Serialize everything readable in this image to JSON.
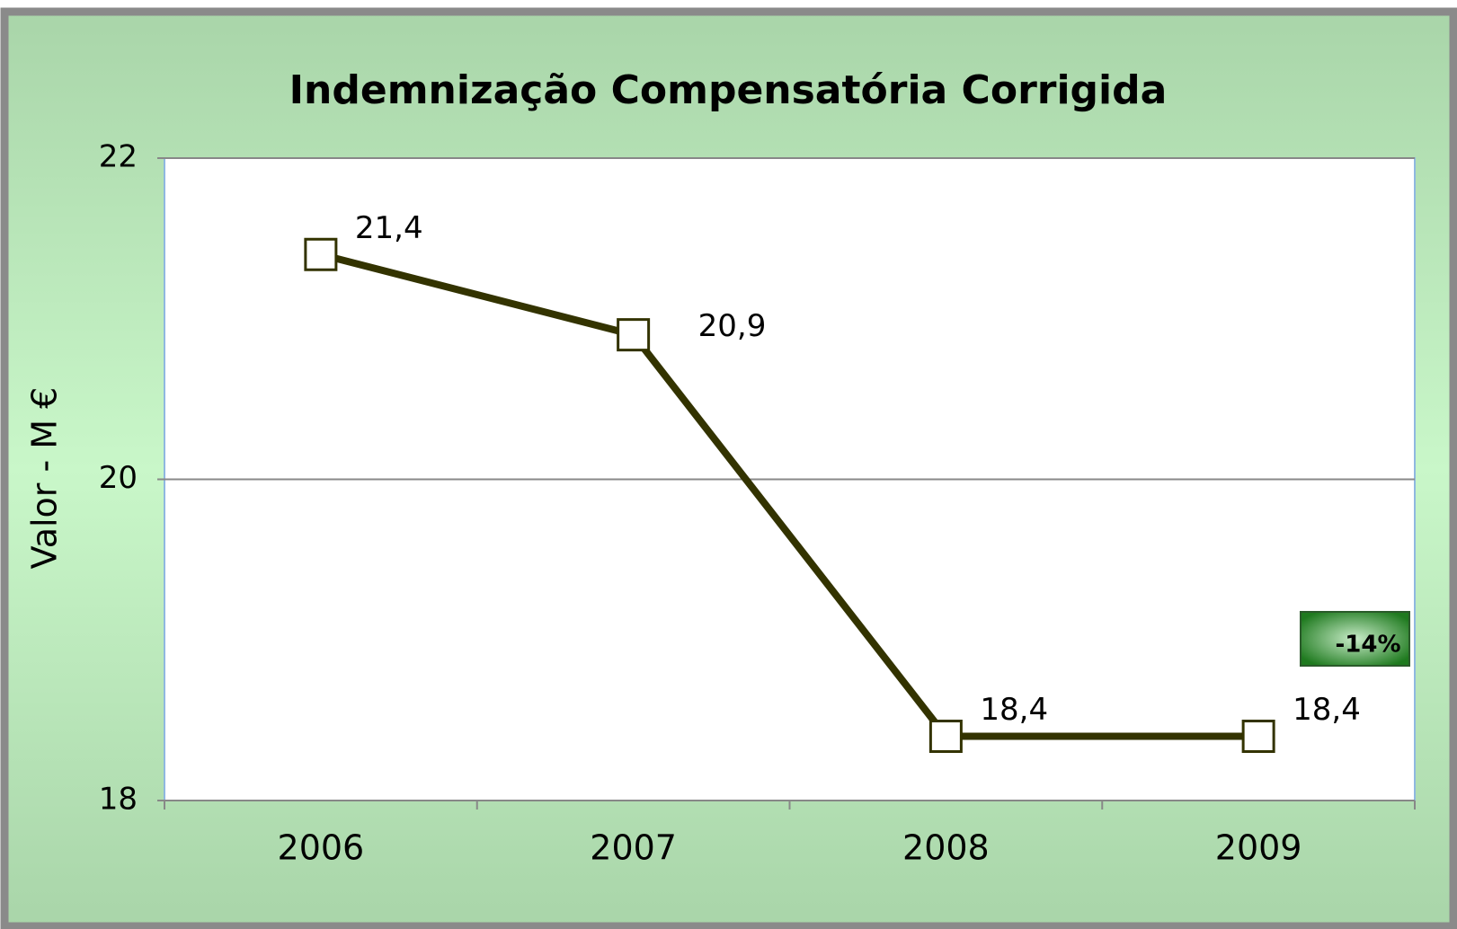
{
  "chart_data": {
    "type": "line",
    "title": "Indemnização Compensatória Corrigida",
    "y_label": "Valor - M €",
    "categories": [
      "2006",
      "2007",
      "2008",
      "2009"
    ],
    "series": [
      {
        "name": "Indemnização Compensatória Corrigida",
        "color": "#333300",
        "values": [
          21.4,
          20.9,
          18.4,
          18.4
        ],
        "value_labels": [
          "21,4",
          "20,9",
          "18,4",
          "18,4"
        ]
      }
    ],
    "ylim": [
      18,
      22
    ],
    "yticks": [
      18,
      20,
      22
    ],
    "grid": true,
    "annotation": "-14%"
  }
}
